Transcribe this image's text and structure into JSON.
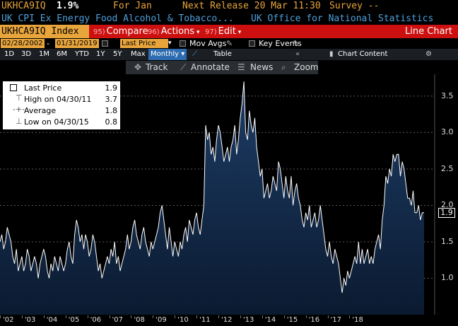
{
  "header": {
    "ticker": "UKHCA9IQ",
    "price": "1.9%",
    "for_label": "For Jan",
    "next_release": "Next Release 20 Mar 11:30",
    "survey": "Survey --",
    "description": "UK CPI Ex Energy Food Alcohol & Tobacco...",
    "source": "UK Office for National Statistics"
  },
  "command_bar": {
    "index": "UKHCA9IQ Index",
    "compare": {
      "num": "95)",
      "label": "Compare"
    },
    "actions": {
      "num": "96)",
      "label": "Actions"
    },
    "edit": {
      "num": "97)",
      "label": "Edit"
    },
    "chart_type": "Line Chart"
  },
  "range_bar": {
    "start_date": "02/28/2002",
    "end_date": "01/31/2019",
    "field": "Last Price",
    "mov_avgs": "Mov Avgs",
    "key_events": "Key Events"
  },
  "period_bar": {
    "periods": [
      "1D",
      "3D",
      "1M",
      "6M",
      "YTD",
      "1Y",
      "5Y",
      "Max"
    ],
    "frequency": "Monthly",
    "table": "Table",
    "chart_content": "Chart Content"
  },
  "toolbar": {
    "track": "Track",
    "annotate": "Annotate",
    "news": "News",
    "zoom": "Zoom"
  },
  "legend": {
    "rows": [
      {
        "label": "Last Price",
        "value": "1.9"
      },
      {
        "label": "High on 04/30/11",
        "value": "3.7"
      },
      {
        "label": "Average",
        "value": "1.8"
      },
      {
        "label": "Low on 04/30/15",
        "value": "0.8"
      }
    ]
  },
  "last_value_tag": "1.9",
  "colors": {
    "amber": "#e8a53c",
    "blue_text": "#4ea0dc",
    "red_bar": "#cc1010",
    "area_fill_top": "#1d3d66",
    "line": "#ffffff"
  },
  "chart_data": {
    "type": "area",
    "ylim": [
      0.5,
      3.8
    ],
    "yticks": [
      "1.0",
      "1.5",
      "2.0",
      "2.5",
      "3.0",
      "3.5"
    ],
    "grid": true,
    "x_ticks": [
      "'02",
      "'03",
      "'04",
      "'05",
      "'06",
      "'07",
      "'08",
      "'09",
      "'10",
      "'11",
      "'12",
      "'13",
      "'14",
      "'15",
      "'16",
      "'17",
      "'18"
    ],
    "series": [
      {
        "values": [
          1.5,
          1.6,
          1.4,
          1.5,
          1.7,
          1.6,
          1.5,
          1.3,
          1.2,
          1.4,
          1.1,
          1.2,
          1.3,
          1.1,
          1.2,
          1.4,
          1.3,
          1.1,
          1.2,
          1.3,
          1.2,
          1.0,
          1.2,
          1.3,
          1.4,
          1.3,
          1.1,
          1.0,
          1.2,
          1.1,
          1.3,
          1.2,
          1.1,
          1.3,
          1.2,
          1.1,
          1.2,
          1.4,
          1.5,
          1.3,
          1.2,
          1.6,
          1.8,
          1.7,
          1.5,
          1.6,
          1.4,
          1.6,
          1.5,
          1.3,
          1.4,
          1.6,
          1.5,
          1.3,
          1.1,
          1.2,
          1.0,
          1.1,
          1.2,
          1.3,
          1.2,
          1.4,
          1.3,
          1.5,
          1.2,
          1.3,
          1.1,
          1.2,
          1.3,
          1.4,
          1.6,
          1.4,
          1.5,
          1.7,
          1.8,
          1.6,
          1.5,
          1.4,
          1.6,
          1.7,
          1.5,
          1.4,
          1.3,
          1.5,
          1.4,
          1.5,
          1.6,
          1.7,
          1.9,
          2.0,
          1.8,
          1.6,
          1.4,
          1.7,
          1.5,
          1.3,
          1.5,
          1.4,
          1.3,
          1.5,
          1.4,
          1.6,
          1.7,
          1.5,
          1.8,
          1.7,
          1.6,
          1.8,
          1.9,
          1.7,
          1.6,
          1.8,
          2.0,
          3.1,
          2.9,
          3.0,
          2.7,
          2.8,
          2.6,
          2.9,
          3.1,
          3.0,
          2.8,
          2.6,
          2.7,
          2.8,
          2.6,
          2.8,
          2.9,
          3.1,
          2.7,
          2.9,
          3.2,
          3.4,
          3.7,
          3.0,
          2.9,
          3.3,
          3.1,
          3.0,
          3.2,
          2.8,
          2.6,
          2.4,
          2.5,
          2.1,
          2.2,
          2.3,
          2.1,
          2.2,
          2.4,
          2.3,
          2.2,
          2.6,
          2.5,
          2.3,
          2.1,
          2.4,
          2.2,
          2.1,
          2.4,
          2.0,
          2.2,
          2.3,
          2.1,
          2.0,
          1.8,
          1.7,
          1.9,
          1.8,
          2.0,
          1.7,
          1.8,
          1.9,
          1.7,
          1.8,
          2.0,
          1.8,
          1.6,
          1.4,
          1.3,
          1.5,
          1.3,
          1.2,
          1.4,
          1.3,
          1.2,
          1.0,
          0.8,
          1.0,
          0.9,
          1.1,
          1.0,
          1.1,
          1.2,
          1.3,
          1.2,
          1.5,
          1.2,
          1.4,
          1.2,
          1.3,
          1.4,
          1.2,
          1.3,
          1.2,
          1.4,
          1.5,
          1.6,
          1.4,
          1.8,
          2.0,
          2.4,
          2.3,
          2.5,
          2.4,
          2.7,
          2.6,
          2.7,
          2.7,
          2.4,
          2.6,
          2.5,
          2.3,
          2.1,
          2.1,
          2.0,
          2.2,
          1.9,
          1.9,
          2.0,
          1.8,
          1.9,
          1.9
        ]
      }
    ]
  }
}
